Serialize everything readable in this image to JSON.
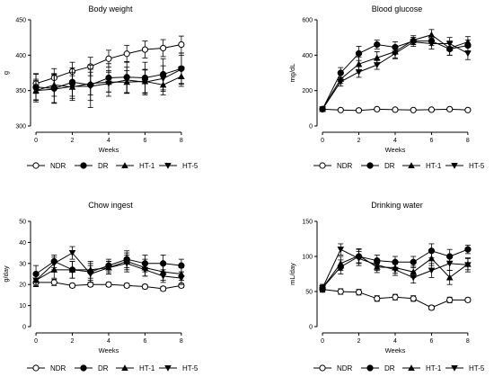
{
  "chart_data": [
    {
      "type": "line",
      "title": "Body weight",
      "xlabel": "Weeks",
      "ylabel": "g",
      "xlim": [
        -0.3,
        8.5
      ],
      "ylim": [
        300,
        450
      ],
      "xticks": [
        0,
        2,
        4,
        6,
        8
      ],
      "yticks": [
        300,
        350,
        400,
        450
      ],
      "x": [
        0,
        1,
        2,
        3,
        4,
        5,
        6,
        7,
        8
      ],
      "series": [
        {
          "name": "NDR",
          "marker": "open-circle",
          "values": [
            360,
            368,
            377,
            384,
            395,
            402,
            408,
            410,
            415
          ],
          "errors": [
            14,
            13,
            13,
            13,
            12,
            12,
            12,
            12,
            12
          ]
        },
        {
          "name": "DR",
          "marker": "filled-circle",
          "values": [
            355,
            353,
            362,
            358,
            368,
            369,
            368,
            373,
            381
          ],
          "errors": [
            18,
            20,
            20,
            22,
            20,
            22,
            22,
            22,
            22
          ]
        },
        {
          "name": "HT-1",
          "marker": "triangle-up",
          "values": [
            350,
            358,
            355,
            360,
            362,
            362,
            363,
            358,
            370
          ],
          "errors": [
            14,
            16,
            16,
            16,
            14,
            16,
            16,
            14,
            14
          ]
        },
        {
          "name": "HT-5",
          "marker": "triangle-down",
          "values": [
            350,
            352,
            356,
            356,
            360,
            365,
            362,
            367,
            380
          ],
          "errors": [
            16,
            20,
            20,
            30,
            18,
            18,
            18,
            18,
            20
          ]
        }
      ]
    },
    {
      "type": "line",
      "title": "Blood glucose",
      "xlabel": "Weeks",
      "ylabel": "mg/dL",
      "xlim": [
        -0.3,
        8.5
      ],
      "ylim": [
        0,
        600
      ],
      "xticks": [
        0,
        2,
        4,
        6,
        8
      ],
      "yticks": [
        0,
        200,
        400,
        600
      ],
      "x": [
        0,
        1,
        2,
        3,
        4,
        5,
        6,
        7,
        8
      ],
      "series": [
        {
          "name": "NDR",
          "marker": "open-circle",
          "values": [
            95,
            90,
            88,
            95,
            92,
            90,
            92,
            95,
            90
          ],
          "errors": [
            5,
            5,
            5,
            5,
            5,
            5,
            5,
            5,
            5
          ]
        },
        {
          "name": "DR",
          "marker": "filled-circle",
          "values": [
            95,
            300,
            410,
            460,
            445,
            480,
            480,
            435,
            455
          ],
          "errors": [
            10,
            30,
            40,
            25,
            30,
            20,
            25,
            35,
            30
          ]
        },
        {
          "name": "HT-1",
          "marker": "triangle-up",
          "values": [
            95,
            265,
            350,
            385,
            420,
            485,
            515,
            440,
            475
          ],
          "errors": [
            10,
            25,
            40,
            35,
            35,
            25,
            30,
            40,
            30
          ]
        },
        {
          "name": "HT-5",
          "marker": "triangle-down",
          "values": [
            95,
            250,
            305,
            345,
            410,
            475,
            465,
            465,
            410
          ],
          "errors": [
            10,
            25,
            30,
            25,
            30,
            25,
            30,
            35,
            35
          ]
        }
      ]
    },
    {
      "type": "line",
      "title": "Chow ingest",
      "xlabel": "Weeks",
      "ylabel": "g/day",
      "xlim": [
        -0.3,
        8.5
      ],
      "ylim": [
        0,
        50
      ],
      "xticks": [
        0,
        2,
        4,
        6,
        8
      ],
      "yticks": [
        0,
        10,
        20,
        30,
        40,
        50
      ],
      "x": [
        0,
        1,
        2,
        3,
        4,
        5,
        6,
        7,
        8
      ],
      "series": [
        {
          "name": "NDR",
          "marker": "open-circle",
          "values": [
            21,
            21,
            19.5,
            20,
            20,
            19.5,
            19,
            18,
            19.5
          ],
          "errors": [
            1.5,
            1.5,
            1,
            1,
            1,
            1,
            1,
            1,
            1
          ]
        },
        {
          "name": "DR",
          "marker": "filled-circle",
          "values": [
            25,
            31,
            27,
            26,
            29,
            32,
            30,
            30,
            29
          ],
          "errors": [
            4,
            3,
            4,
            4,
            3,
            4,
            4,
            4,
            3
          ]
        },
        {
          "name": "HT-1",
          "marker": "triangle-up",
          "values": [
            22,
            27,
            27,
            27,
            28,
            31,
            28,
            26,
            25
          ],
          "errors": [
            3,
            4,
            4,
            4,
            3,
            4,
            4,
            4,
            3
          ]
        },
        {
          "name": "HT-5",
          "marker": "triangle-down",
          "values": [
            22,
            30,
            35,
            25,
            28,
            30,
            27,
            24,
            23
          ],
          "errors": [
            3,
            3,
            3,
            4,
            3,
            4,
            3,
            3,
            3
          ]
        }
      ]
    },
    {
      "type": "line",
      "title": "Drinking water",
      "xlabel": "Weeks",
      "ylabel": "mL/day",
      "xlim": [
        -0.3,
        8.5
      ],
      "ylim": [
        0,
        150
      ],
      "xticks": [
        0,
        2,
        4,
        6,
        8
      ],
      "yticks": [
        0,
        50,
        100,
        150
      ],
      "x": [
        0,
        1,
        2,
        3,
        4,
        5,
        6,
        7,
        8
      ],
      "series": [
        {
          "name": "NDR",
          "marker": "open-circle",
          "values": [
            53,
            50,
            49,
            40,
            42,
            40,
            27,
            38,
            38
          ],
          "errors": [
            4,
            4,
            4,
            4,
            4,
            4,
            3,
            4,
            3
          ]
        },
        {
          "name": "DR",
          "marker": "filled-circle",
          "values": [
            55,
            85,
            100,
            94,
            92,
            92,
            108,
            100,
            110
          ],
          "errors": [
            5,
            10,
            10,
            8,
            8,
            8,
            10,
            10,
            6
          ]
        },
        {
          "name": "HT-1",
          "marker": "triangle-up",
          "values": [
            55,
            90,
            101,
            85,
            84,
            78,
            97,
            70,
            89
          ],
          "errors": [
            5,
            10,
            10,
            8,
            8,
            8,
            10,
            10,
            8
          ]
        },
        {
          "name": "HT-5",
          "marker": "triangle-down",
          "values": [
            55,
            110,
            97,
            88,
            81,
            70,
            80,
            90,
            88
          ],
          "errors": [
            5,
            8,
            10,
            8,
            8,
            8,
            10,
            10,
            10
          ]
        }
      ]
    }
  ]
}
